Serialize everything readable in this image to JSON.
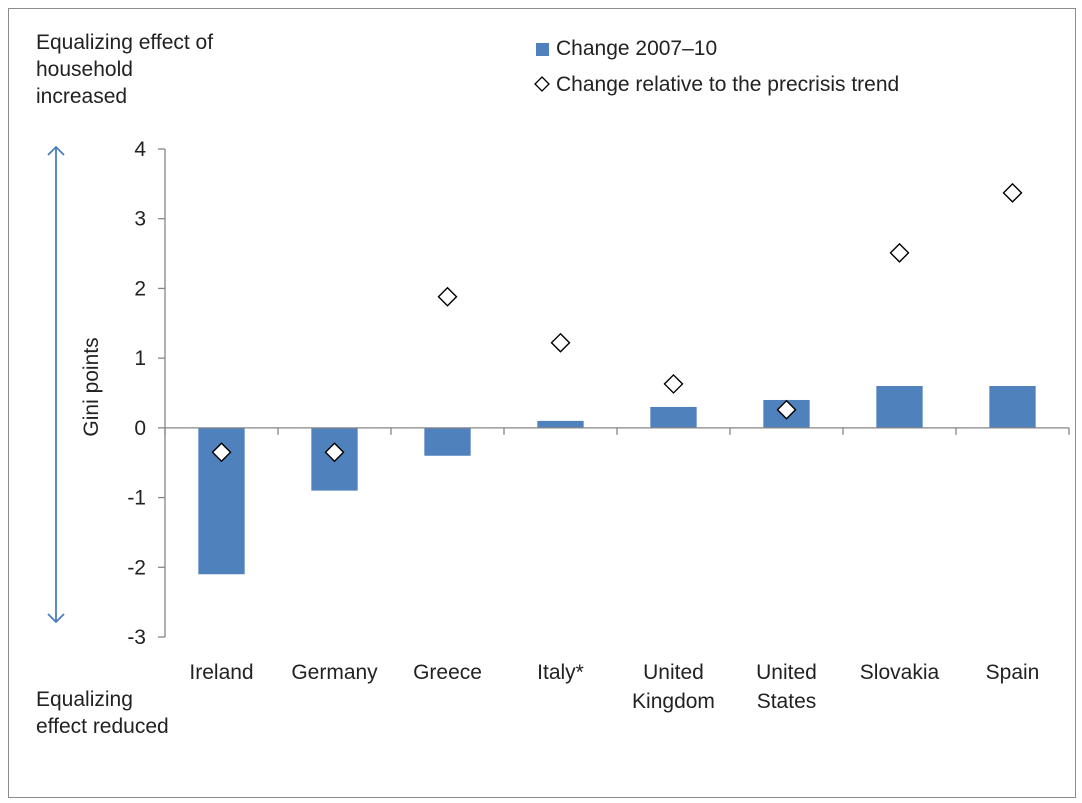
{
  "annotations": {
    "top": "Equalizing effect of household increased",
    "bottom": "Equalizing effect reduced"
  },
  "colors": {
    "bar": "#4f81bd",
    "arrow": "#4a7ebb",
    "axis": "#868686",
    "marker_fill": "#ffffff",
    "marker_stroke": "#000000"
  },
  "chart_data": {
    "type": "bar",
    "ylabel": "Gini points",
    "xlabel": "",
    "ylim": [
      -3,
      4
    ],
    "yticks": [
      "-3",
      "-2",
      "-1",
      "0",
      "1",
      "2",
      "3",
      "4"
    ],
    "grid": false,
    "legend_position": "top-right",
    "categories": [
      "Ireland",
      "Germany",
      "Greece",
      "Italy*",
      "United Kingdom",
      "United States",
      "Slovakia",
      "Spain"
    ],
    "series": [
      {
        "name": "Change 2007–10",
        "kind": "bar",
        "values": [
          -2.1,
          -0.9,
          -0.4,
          0.1,
          0.3,
          0.4,
          0.6,
          0.6
        ]
      },
      {
        "name": "Change relative to the precrisis trend",
        "kind": "marker",
        "marker": "diamond",
        "values": [
          -0.35,
          -0.35,
          1.88,
          1.22,
          0.63,
          0.26,
          2.51,
          3.37
        ]
      }
    ]
  }
}
